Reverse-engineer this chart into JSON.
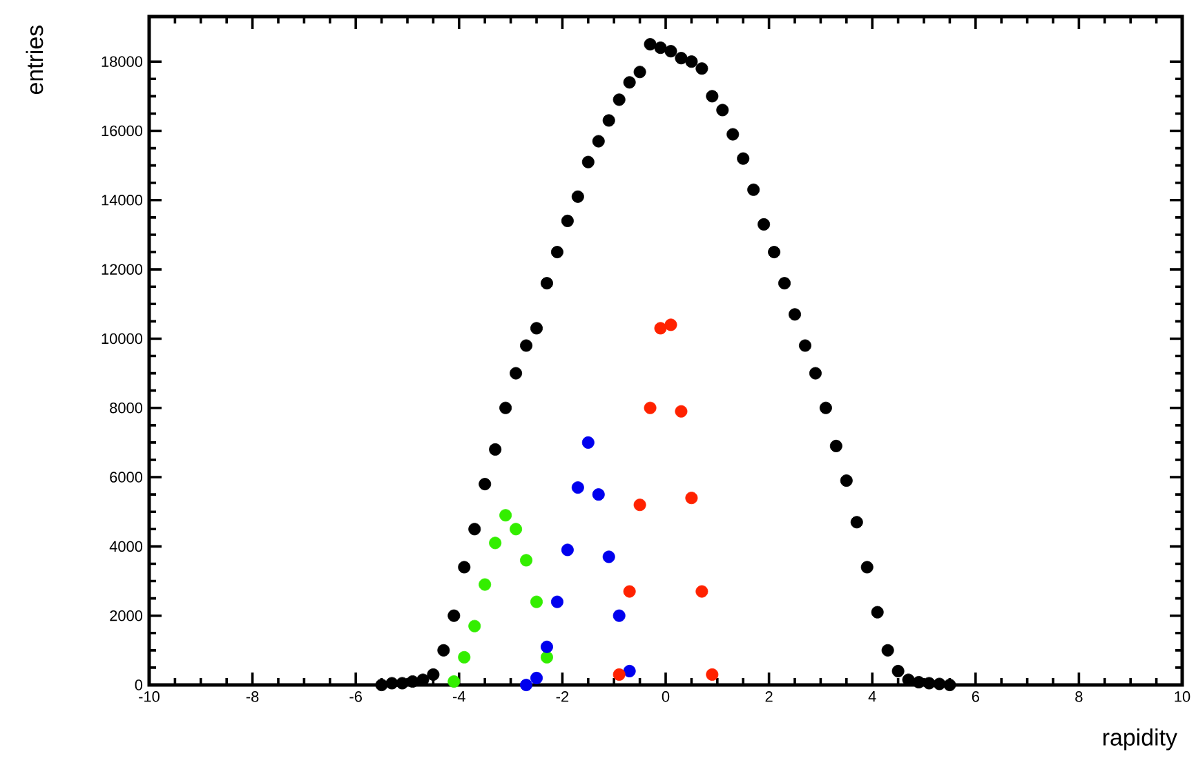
{
  "chart_data": {
    "type": "scatter",
    "xlabel": "rapidity",
    "ylabel": "entries",
    "xlim": [
      -10,
      10
    ],
    "ylim": [
      0,
      19300
    ],
    "xticks": [
      -10,
      -8,
      -6,
      -4,
      -2,
      0,
      2,
      4,
      6,
      8,
      10
    ],
    "yticks": [
      0,
      2000,
      4000,
      6000,
      8000,
      10000,
      12000,
      14000,
      16000,
      18000
    ],
    "marker": "circle",
    "series": [
      {
        "color": "#000000",
        "x": [
          -5.5,
          -5.3,
          -5.1,
          -4.9,
          -4.7,
          -4.5,
          -4.3,
          -4.1,
          -3.9,
          -3.7,
          -3.5,
          -3.3,
          -3.1,
          -2.9,
          -2.7,
          -2.5,
          -2.3,
          -2.1,
          -1.9,
          -1.7,
          -1.5,
          -1.3,
          -1.1,
          -0.9,
          -0.7,
          -0.5,
          -0.3,
          -0.1,
          0.1,
          0.3,
          0.5,
          0.7,
          0.9,
          1.1,
          1.3,
          1.5,
          1.7,
          1.9,
          2.1,
          2.3,
          2.5,
          2.7,
          2.9,
          3.1,
          3.3,
          3.5,
          3.7,
          3.9,
          4.1,
          4.3,
          4.5,
          4.7,
          4.9,
          5.1,
          5.3,
          5.5
        ],
        "values": [
          0,
          50,
          50,
          100,
          150,
          300,
          1000,
          2000,
          3400,
          4500,
          5800,
          6800,
          8000,
          9000,
          9800,
          10300,
          11600,
          12500,
          13400,
          14100,
          15100,
          15700,
          16300,
          16900,
          17400,
          17700,
          18500,
          18400,
          18300,
          18100,
          18000,
          17800,
          17000,
          16600,
          15900,
          15200,
          14300,
          13300,
          12500,
          11600,
          10700,
          9800,
          9000,
          8000,
          6900,
          5900,
          4700,
          3400,
          2100,
          1000,
          400,
          150,
          80,
          50,
          30,
          0
        ]
      },
      {
        "color": "#33ee00",
        "x": [
          -4.1,
          -3.9,
          -3.7,
          -3.5,
          -3.3,
          -3.1,
          -2.9,
          -2.7,
          -2.5,
          -2.3
        ],
        "values": [
          100,
          800,
          1700,
          2900,
          4100,
          4900,
          4500,
          3600,
          2400,
          800
        ]
      },
      {
        "color": "#0000ee",
        "x": [
          -2.7,
          -2.5,
          -2.3,
          -2.1,
          -1.9,
          -1.7,
          -1.5,
          -1.3,
          -1.1,
          -0.9,
          -0.7
        ],
        "values": [
          0,
          200,
          1100,
          2400,
          3900,
          5700,
          7000,
          5500,
          3700,
          2000,
          400
        ]
      },
      {
        "color": "#ff2200",
        "x": [
          -0.9,
          -0.7,
          -0.5,
          -0.3,
          -0.1,
          0.1,
          0.3,
          0.5,
          0.7,
          0.9
        ],
        "values": [
          300,
          2700,
          5200,
          8000,
          10300,
          10400,
          7900,
          5400,
          2700,
          300
        ]
      }
    ]
  }
}
